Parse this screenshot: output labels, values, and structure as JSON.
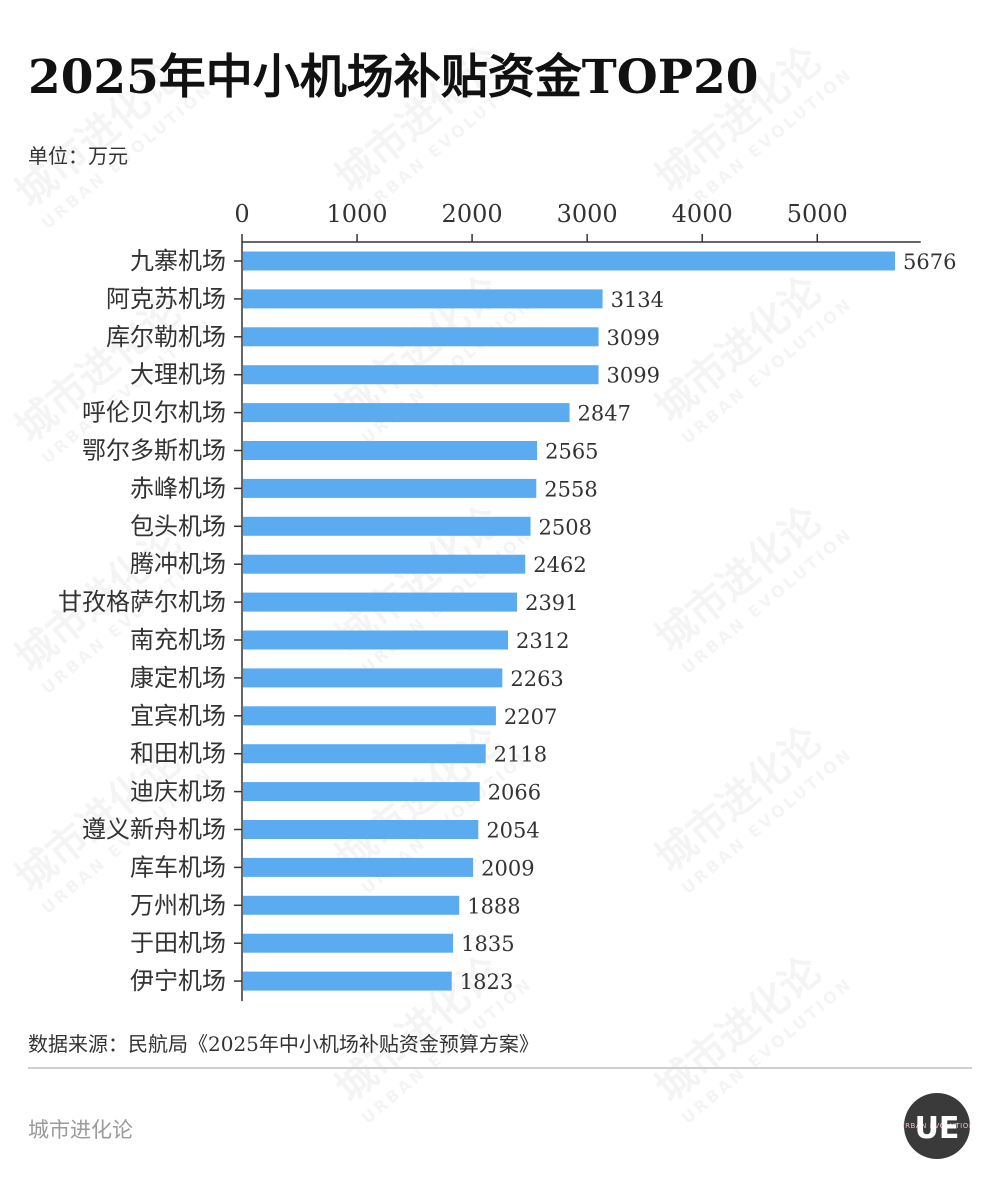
{
  "header": {
    "title": "2025年中小机场补贴资金TOP20",
    "unit": "单位：万元"
  },
  "footer": {
    "source": "数据来源：民航局《2025年中小机场补贴资金预算方案》",
    "brand": "城市进化论"
  },
  "logo": {
    "glyph": "UE",
    "ring_text": "URBAN EVOLUTION",
    "bg_color": "#3a3a3a"
  },
  "watermark": {
    "text": "城市进化论",
    "subtext": "URBAN EVOLUTION"
  },
  "colors": {
    "bar": "#5aabf0",
    "axis": "#333333",
    "label": "#333333"
  },
  "chart_data": {
    "type": "bar",
    "orientation": "horizontal",
    "categories": [
      "九寨机场",
      "阿克苏机场",
      "库尔勒机场",
      "大理机场",
      "呼伦贝尔机场",
      "鄂尔多斯机场",
      "赤峰机场",
      "包头机场",
      "腾冲机场",
      "甘孜格萨尔机场",
      "南充机场",
      "康定机场",
      "宜宾机场",
      "和田机场",
      "迪庆机场",
      "遵义新舟机场",
      "库车机场",
      "万州机场",
      "于田机场",
      "伊宁机场"
    ],
    "values": [
      5676,
      3134,
      3099,
      3099,
      2847,
      2565,
      2558,
      2508,
      2462,
      2391,
      2312,
      2263,
      2207,
      2118,
      2066,
      2054,
      2009,
      1888,
      1835,
      1823
    ],
    "x_ticks": [
      0,
      1000,
      2000,
      3000,
      4000,
      5000
    ],
    "xlim": [
      0,
      5900
    ],
    "axis_position": "top",
    "grid": false,
    "data_labels": true
  }
}
